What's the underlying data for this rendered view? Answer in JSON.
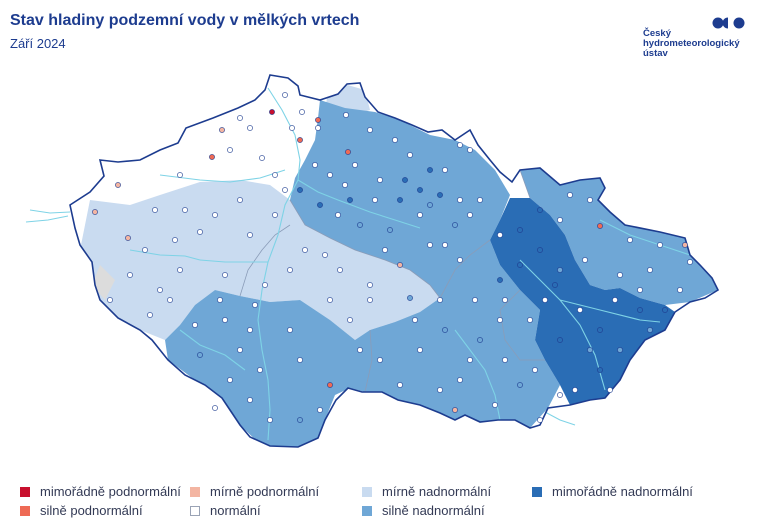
{
  "title": "Stav hladiny podzemní vody v mělkých vrtech",
  "subtitle": "Září 2024",
  "logo": {
    "line1": "Český",
    "line2": "hydrometeorologický",
    "line3": "ústav"
  },
  "colors": {
    "very_below": "#c8102e",
    "strongly_below": "#ee6a55",
    "slightly_below": "#f3b5a2",
    "normal": "#ffffff",
    "slightly_above": "#c9dbf0",
    "strongly_above": "#6fa7d6",
    "very_above": "#2a6db5",
    "outline": "#1d3c8f",
    "rivers": "#7ed3e6"
  },
  "legend": [
    {
      "label": "mimořádně podnormální",
      "color": "#c8102e"
    },
    {
      "label": "silně podnormální",
      "color": "#ee6a55"
    },
    {
      "label": "mírně podnormální",
      "color": "#f3b5a2"
    },
    {
      "label": "normální",
      "color": "#ffffff"
    },
    {
      "label": "mírně nadnormální",
      "color": "#c9dbf0"
    },
    {
      "label": "silně nadnormální",
      "color": "#6fa7d6"
    },
    {
      "label": "mimořádně nadnormální",
      "color": "#2a6db5"
    }
  ]
}
